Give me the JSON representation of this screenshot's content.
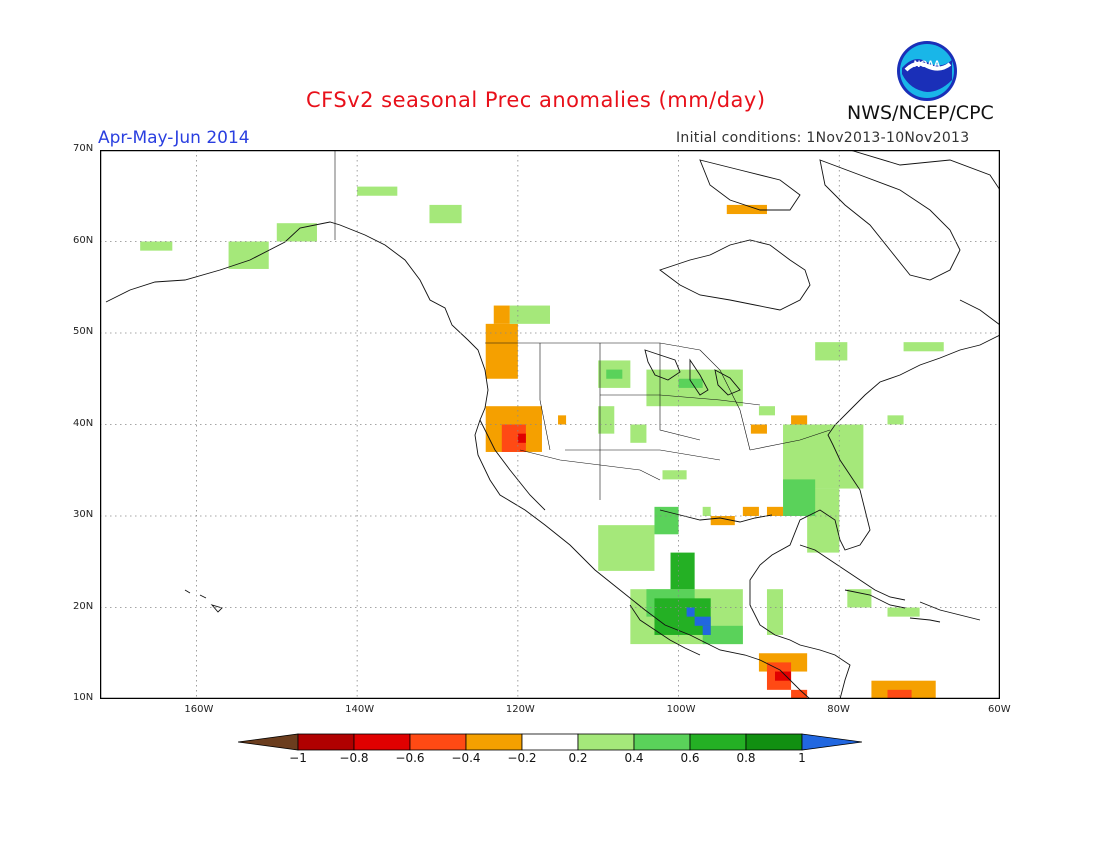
{
  "title": "CFSv2 seasonal Prec anomalies (mm/day)",
  "org": "NWS/NCEP/CPC",
  "season": "Apr-May-Jun 2014",
  "init_conditions": "Initial conditions: 1Nov2013-10Nov2013",
  "logo_text": "NOAA",
  "map": {
    "lon_min": -172,
    "lon_max": -60,
    "lat_min": 10,
    "lat_max": 70,
    "lat_labels": [
      "70N",
      "60N",
      "50N",
      "40N",
      "30N",
      "20N",
      "10N"
    ],
    "lon_labels": [
      "160W",
      "140W",
      "120W",
      "100W",
      "80W",
      "60W"
    ]
  },
  "colorbar": {
    "labels": [
      "-1",
      "-0.8",
      "-0.6",
      "-0.4",
      "-0.2",
      "0.2",
      "0.4",
      "0.6",
      "0.8",
      "1"
    ],
    "colors": [
      "#6b3d1e",
      "#b00000",
      "#e00000",
      "#ff4a14",
      "#f5a000",
      "#ffffff",
      "#a5e87a",
      "#5ad25a",
      "#24b024",
      "#118f11",
      "#2167e0"
    ]
  },
  "anomalies": [
    {
      "lon": -123,
      "lat": 53,
      "lon2": -121,
      "lat2": 51,
      "level": "-0.4"
    },
    {
      "lon": -124,
      "lat": 51,
      "lon2": -120,
      "lat2": 45,
      "level": "-0.4"
    },
    {
      "lon": -124,
      "lat": 42,
      "lon2": -117,
      "lat2": 37,
      "level": "-0.4"
    },
    {
      "lon": -122,
      "lat": 40,
      "lon2": -119,
      "lat2": 37,
      "level": "-0.6"
    },
    {
      "lon": -120,
      "lat": 39,
      "lon2": -119,
      "lat2": 38,
      "level": "-0.8"
    },
    {
      "lon": -115,
      "lat": 41,
      "lon2": -114,
      "lat2": 40,
      "level": "-0.4"
    },
    {
      "lon": -94,
      "lat": 64,
      "lon2": -89,
      "lat2": 63,
      "level": "-0.4"
    },
    {
      "lon": -96,
      "lat": 30,
      "lon2": -93,
      "lat2": 29,
      "level": "-0.4"
    },
    {
      "lon": -92,
      "lat": 31,
      "lon2": -90,
      "lat2": 30,
      "level": "-0.4"
    },
    {
      "lon": -89,
      "lat": 31,
      "lon2": -87,
      "lat2": 30,
      "level": "-0.4"
    },
    {
      "lon": -91,
      "lat": 40,
      "lon2": -89,
      "lat2": 39,
      "level": "-0.4"
    },
    {
      "lon": -86,
      "lat": 41,
      "lon2": -84,
      "lat2": 40,
      "level": "-0.4"
    },
    {
      "lon": -90,
      "lat": 15,
      "lon2": -84,
      "lat2": 13,
      "level": "-0.4"
    },
    {
      "lon": -89,
      "lat": 14,
      "lon2": -86,
      "lat2": 11,
      "level": "-0.6"
    },
    {
      "lon": -88,
      "lat": 13,
      "lon2": -86,
      "lat2": 12,
      "level": "-0.8"
    },
    {
      "lon": -86,
      "lat": 11,
      "lon2": -84,
      "lat2": 10,
      "level": "-0.6"
    },
    {
      "lon": -76,
      "lat": 12,
      "lon2": -68,
      "lat2": 10,
      "level": "-0.4"
    },
    {
      "lon": -74,
      "lat": 11,
      "lon2": -71,
      "lat2": 10,
      "level": "-0.6"
    },
    {
      "lon": -140,
      "lat": 66,
      "lon2": -135,
      "lat2": 65,
      "level": "0.2"
    },
    {
      "lon": -131,
      "lat": 64,
      "lon2": -127,
      "lat2": 62,
      "level": "0.2"
    },
    {
      "lon": -150,
      "lat": 62,
      "lon2": -145,
      "lat2": 60,
      "level": "0.2"
    },
    {
      "lon": -156,
      "lat": 60,
      "lon2": -151,
      "lat2": 57,
      "level": "0.2"
    },
    {
      "lon": -167,
      "lat": 60,
      "lon2": -163,
      "lat2": 59,
      "level": "0.2"
    },
    {
      "lon": -121,
      "lat": 53,
      "lon2": -116,
      "lat2": 51,
      "level": "0.2"
    },
    {
      "lon": -110,
      "lat": 47,
      "lon2": -106,
      "lat2": 44,
      "level": "0.2"
    },
    {
      "lon": -104,
      "lat": 46,
      "lon2": -92,
      "lat2": 42,
      "level": "0.2"
    },
    {
      "lon": -110,
      "lat": 42,
      "lon2": -108,
      "lat2": 39,
      "level": "0.2"
    },
    {
      "lon": -106,
      "lat": 40,
      "lon2": -104,
      "lat2": 38,
      "level": "0.2"
    },
    {
      "lon": -102,
      "lat": 35,
      "lon2": -99,
      "lat2": 34,
      "level": "0.2"
    },
    {
      "lon": -97,
      "lat": 31,
      "lon2": -96,
      "lat2": 30,
      "level": "0.2"
    },
    {
      "lon": -87,
      "lat": 40,
      "lon2": -77,
      "lat2": 33,
      "level": "0.2"
    },
    {
      "lon": -84,
      "lat": 33,
      "lon2": -80,
      "lat2": 26,
      "level": "0.2"
    },
    {
      "lon": -90,
      "lat": 42,
      "lon2": -88,
      "lat2": 41,
      "level": "0.2"
    },
    {
      "lon": -83,
      "lat": 49,
      "lon2": -79,
      "lat2": 47,
      "level": "0.2"
    },
    {
      "lon": -72,
      "lat": 49,
      "lon2": -67,
      "lat2": 48,
      "level": "0.2"
    },
    {
      "lon": -74,
      "lat": 41,
      "lon2": -72,
      "lat2": 40,
      "level": "0.2"
    },
    {
      "lon": -110,
      "lat": 29,
      "lon2": -103,
      "lat2": 24,
      "level": "0.2"
    },
    {
      "lon": -106,
      "lat": 22,
      "lon2": -92,
      "lat2": 16,
      "level": "0.2"
    },
    {
      "lon": -89,
      "lat": 22,
      "lon2": -87,
      "lat2": 17,
      "level": "0.2"
    },
    {
      "lon": -79,
      "lat": 22,
      "lon2": -76,
      "lat2": 20,
      "level": "0.2"
    },
    {
      "lon": -74,
      "lat": 20,
      "lon2": -70,
      "lat2": 19,
      "level": "0.2"
    },
    {
      "lon": -87,
      "lat": 34,
      "lon2": -83,
      "lat2": 30,
      "level": "0.4"
    },
    {
      "lon": -103,
      "lat": 31,
      "lon2": -100,
      "lat2": 28,
      "level": "0.4"
    },
    {
      "lon": -104,
      "lat": 22,
      "lon2": -98,
      "lat2": 19,
      "level": "0.4"
    },
    {
      "lon": -97,
      "lat": 18,
      "lon2": -92,
      "lat2": 16,
      "level": "0.4"
    },
    {
      "lon": -109,
      "lat": 46,
      "lon2": -107,
      "lat2": 45,
      "level": "0.4"
    },
    {
      "lon": -100,
      "lat": 45,
      "lon2": -97,
      "lat2": 44,
      "level": "0.4"
    },
    {
      "lon": -101,
      "lat": 26,
      "lon2": -98,
      "lat2": 22,
      "level": "0.6"
    },
    {
      "lon": -103,
      "lat": 21,
      "lon2": -96,
      "lat2": 17,
      "level": "0.6"
    },
    {
      "lon": -99,
      "lat": 20,
      "lon2": -98,
      "lat2": 19,
      "level": "1"
    },
    {
      "lon": -98,
      "lat": 19,
      "lon2": -96,
      "lat2": 18,
      "level": "1"
    },
    {
      "lon": -97,
      "lat": 18,
      "lon2": -96,
      "lat2": 17,
      "level": "1"
    }
  ]
}
